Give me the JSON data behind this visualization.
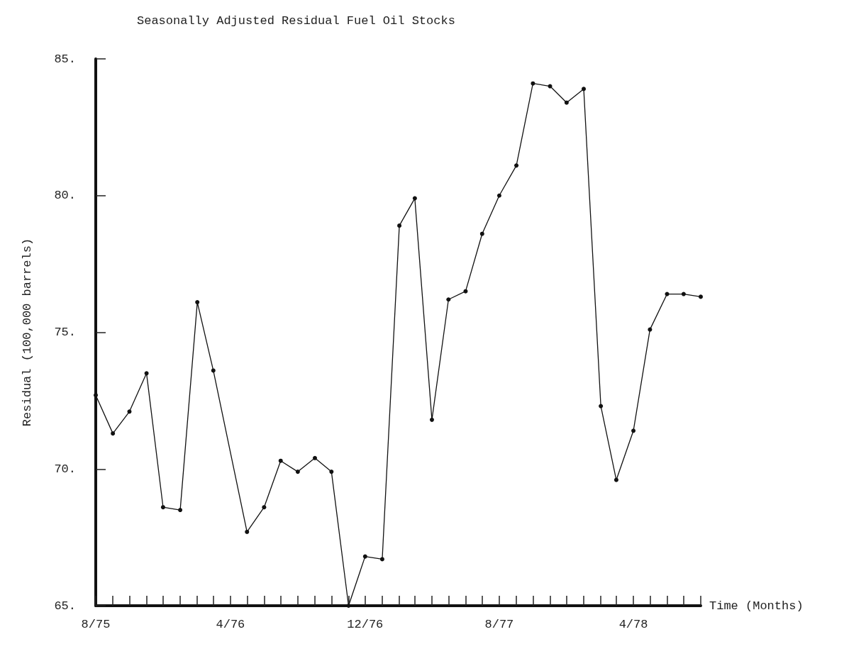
{
  "chart_data": {
    "type": "line",
    "title": "Seasonally Adjusted Residual Fuel Oil Stocks",
    "xlabel": "Time (Months)",
    "ylabel": "Residual (100,000 barrels)",
    "x": [
      "1975-08",
      "1975-09",
      "1975-10",
      "1975-11",
      "1975-12",
      "1976-01",
      "1976-02",
      "1976-03",
      "1976-05",
      "1976-06",
      "1976-07",
      "1976-08",
      "1976-09",
      "1976-10",
      "1976-11",
      "1976-12",
      "1977-01",
      "1977-02",
      "1977-03",
      "1977-04",
      "1977-05",
      "1977-06",
      "1977-07",
      "1977-08",
      "1977-09",
      "1977-10",
      "1977-11",
      "1977-12",
      "1978-01",
      "1978-02",
      "1978-03",
      "1978-04",
      "1978-05",
      "1978-06",
      "1978-07",
      "1978-08"
    ],
    "series": [
      {
        "color": "#111111",
        "values": [
          72.7,
          71.3,
          72.1,
          73.5,
          68.6,
          68.5,
          76.1,
          73.6,
          67.7,
          68.6,
          70.3,
          69.9,
          70.4,
          69.9,
          65.0,
          66.8,
          66.7,
          78.9,
          79.9,
          71.8,
          76.2,
          76.5,
          78.6,
          80.0,
          81.1,
          84.1,
          84.0,
          83.4,
          83.9,
          72.3,
          69.6,
          71.4,
          75.1,
          76.4,
          76.4,
          76.3
        ]
      }
    ],
    "xlim": [
      "1975-08",
      "1978-08"
    ],
    "xticks": [
      {
        "value": "1975-08",
        "label": "8/75"
      },
      {
        "value": "1975-09",
        "label": null
      },
      {
        "value": "1975-10",
        "label": null
      },
      {
        "value": "1975-11",
        "label": null
      },
      {
        "value": "1975-12",
        "label": null
      },
      {
        "value": "1976-01",
        "label": null
      },
      {
        "value": "1976-02",
        "label": null
      },
      {
        "value": "1976-03",
        "label": null
      },
      {
        "value": "1976-04",
        "label": "4/76"
      },
      {
        "value": "1976-05",
        "label": null
      },
      {
        "value": "1976-06",
        "label": null
      },
      {
        "value": "1976-07",
        "label": null
      },
      {
        "value": "1976-08",
        "label": null
      },
      {
        "value": "1976-09",
        "label": null
      },
      {
        "value": "1976-10",
        "label": null
      },
      {
        "value": "1976-11",
        "label": null
      },
      {
        "value": "1976-12",
        "label": "12/76"
      },
      {
        "value": "1977-01",
        "label": null
      },
      {
        "value": "1977-02",
        "label": null
      },
      {
        "value": "1977-03",
        "label": null
      },
      {
        "value": "1977-04",
        "label": null
      },
      {
        "value": "1977-05",
        "label": null
      },
      {
        "value": "1977-06",
        "label": null
      },
      {
        "value": "1977-07",
        "label": null
      },
      {
        "value": "1977-08",
        "label": "8/77"
      },
      {
        "value": "1977-09",
        "label": null
      },
      {
        "value": "1977-10",
        "label": null
      },
      {
        "value": "1977-11",
        "label": null
      },
      {
        "value": "1977-12",
        "label": null
      },
      {
        "value": "1978-01",
        "label": null
      },
      {
        "value": "1978-02",
        "label": null
      },
      {
        "value": "1978-03",
        "label": null
      },
      {
        "value": "1978-04",
        "label": "4/78"
      },
      {
        "value": "1978-05",
        "label": null
      },
      {
        "value": "1978-06",
        "label": null
      },
      {
        "value": "1978-07",
        "label": null
      },
      {
        "value": "1978-08",
        "label": null
      }
    ],
    "ylim": [
      65,
      85
    ],
    "yticks": [
      {
        "value": 65,
        "label": "65."
      },
      {
        "value": 70,
        "label": "70."
      },
      {
        "value": 75,
        "label": "75."
      },
      {
        "value": 80,
        "label": "80."
      },
      {
        "value": 85,
        "label": "85."
      }
    ],
    "grid": false,
    "marker": "circle",
    "line_style": "solid"
  }
}
